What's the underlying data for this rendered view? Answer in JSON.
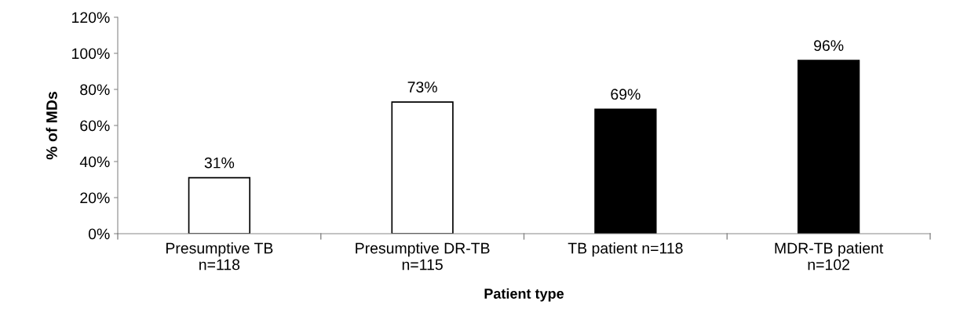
{
  "chart_data": {
    "type": "bar",
    "xlabel": "Patient type",
    "ylabel": "% of MDs",
    "categories": [
      "Presumptive TB\nn=118",
      "Presumptive DR-TB\nn=115",
      "TB patient n=118",
      "MDR-TB patient\nn=102"
    ],
    "values": [
      31,
      73,
      69,
      96
    ],
    "colors": [
      "#ffffff",
      "#ffffff",
      "#000000",
      "#000000"
    ],
    "value_labels": [
      "31%",
      "73%",
      "69%",
      "96%"
    ],
    "ylim": [
      0,
      120
    ],
    "yticks": [
      {
        "value": 0,
        "label": "0%"
      },
      {
        "value": 20,
        "label": "20%"
      },
      {
        "value": 40,
        "label": "40%"
      },
      {
        "value": 60,
        "label": "60%"
      },
      {
        "value": 80,
        "label": "80%"
      },
      {
        "value": 100,
        "label": "100%"
      },
      {
        "value": 120,
        "label": "120%"
      }
    ],
    "grid": false,
    "legend": false
  }
}
